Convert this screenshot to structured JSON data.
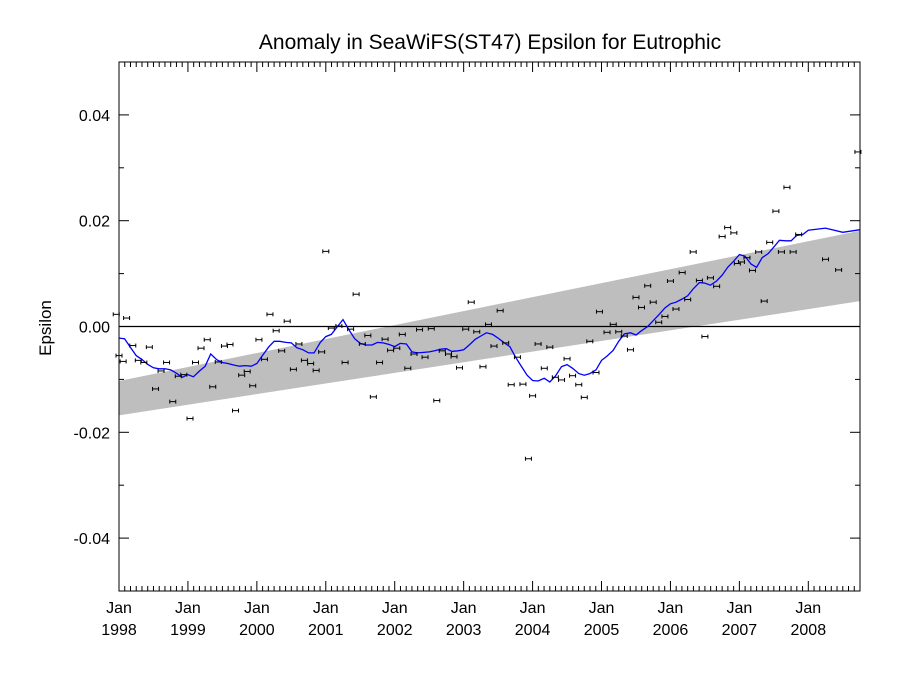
{
  "chart_data": {
    "type": "scatter",
    "title": "Anomaly in SeaWiFS(ST47) Epsilon for Eutrophic",
    "xlabel": "",
    "ylabel": "Epsilon",
    "xlim": [
      1998.0,
      2008.75
    ],
    "ylim": [
      -0.05,
      0.05
    ],
    "y_ticks": [
      {
        "value": 0.04,
        "label": "0.04"
      },
      {
        "value": 0.02,
        "label": "0.02"
      },
      {
        "value": 0.0,
        "label": "0.00"
      },
      {
        "value": -0.02,
        "label": "-0.02"
      },
      {
        "value": -0.04,
        "label": "-0.04"
      }
    ],
    "x_ticks": [
      {
        "value": 1998.0,
        "month": "Jan",
        "year": "1998"
      },
      {
        "value": 1999.0,
        "month": "Jan",
        "year": "1999"
      },
      {
        "value": 2000.0,
        "month": "Jan",
        "year": "2000"
      },
      {
        "value": 2001.0,
        "month": "Jan",
        "year": "2001"
      },
      {
        "value": 2002.0,
        "month": "Jan",
        "year": "2002"
      },
      {
        "value": 2003.0,
        "month": "Jan",
        "year": "2003"
      },
      {
        "value": 2004.0,
        "month": "Jan",
        "year": "2004"
      },
      {
        "value": 2005.0,
        "month": "Jan",
        "year": "2005"
      },
      {
        "value": 2006.0,
        "month": "Jan",
        "year": "2006"
      },
      {
        "value": 2007.0,
        "month": "Jan",
        "year": "2007"
      },
      {
        "value": 2008.0,
        "month": "Jan",
        "year": "2008"
      }
    ],
    "zero_line": 0.0,
    "trend_band": {
      "start": {
        "x": 1998.0,
        "lower": -0.0168,
        "upper": -0.0103
      },
      "end": {
        "x": 2008.75,
        "lower": 0.0048,
        "upper": 0.0181
      },
      "color": "#bebebe"
    },
    "points": {
      "color": "#000000",
      "data": [
        [
          1997.96,
          0.0023
        ],
        [
          1998.0,
          -0.0055
        ],
        [
          1998.06,
          -0.0066
        ],
        [
          1998.11,
          0.0016
        ],
        [
          1998.2,
          -0.0036
        ],
        [
          1998.28,
          -0.0064
        ],
        [
          1998.36,
          -0.0068
        ],
        [
          1998.44,
          -0.0039
        ],
        [
          1998.53,
          -0.0118
        ],
        [
          1998.61,
          -0.0084
        ],
        [
          1998.69,
          -0.0068
        ],
        [
          1998.78,
          -0.0142
        ],
        [
          1998.86,
          -0.0094
        ],
        [
          1998.94,
          -0.0091
        ],
        [
          1999.03,
          -0.0174
        ],
        [
          1999.11,
          -0.0068
        ],
        [
          1999.19,
          -0.0041
        ],
        [
          1999.28,
          -0.0025
        ],
        [
          1999.36,
          -0.0114
        ],
        [
          1999.44,
          -0.0067
        ],
        [
          1999.53,
          -0.0037
        ],
        [
          1999.61,
          -0.0034
        ],
        [
          1999.69,
          -0.0159
        ],
        [
          1999.78,
          -0.0092
        ],
        [
          1999.86,
          -0.0085
        ],
        [
          1999.94,
          -0.0112
        ],
        [
          2000.03,
          -0.0025
        ],
        [
          2000.11,
          -0.0062
        ],
        [
          2000.19,
          0.0023
        ],
        [
          2000.28,
          -0.0008
        ],
        [
          2000.36,
          -0.0046
        ],
        [
          2000.44,
          0.001
        ],
        [
          2000.53,
          -0.0081
        ],
        [
          2000.61,
          -0.0033
        ],
        [
          2000.69,
          -0.0064
        ],
        [
          2000.78,
          -0.007
        ],
        [
          2000.86,
          -0.0083
        ],
        [
          2000.94,
          -0.0048
        ],
        [
          2001.0,
          0.0142
        ],
        [
          2001.08,
          -0.0003
        ],
        [
          2001.19,
          0.0001
        ],
        [
          2001.28,
          -0.0068
        ],
        [
          2001.36,
          -0.0005
        ],
        [
          2001.44,
          0.0061
        ],
        [
          2001.53,
          -0.0033
        ],
        [
          2001.61,
          -0.0017
        ],
        [
          2001.69,
          -0.0133
        ],
        [
          2001.78,
          -0.0068
        ],
        [
          2001.86,
          -0.0024
        ],
        [
          2001.94,
          -0.0045
        ],
        [
          2002.03,
          -0.0041
        ],
        [
          2002.11,
          -0.0015
        ],
        [
          2002.19,
          -0.0079
        ],
        [
          2002.28,
          -0.0052
        ],
        [
          2002.36,
          -0.0006
        ],
        [
          2002.44,
          -0.0058
        ],
        [
          2002.53,
          -0.0004
        ],
        [
          2002.61,
          -0.014
        ],
        [
          2002.69,
          -0.0046
        ],
        [
          2002.78,
          -0.0052
        ],
        [
          2002.86,
          -0.0057
        ],
        [
          2002.94,
          -0.0078
        ],
        [
          2003.03,
          -0.0005
        ],
        [
          2003.11,
          0.0046
        ],
        [
          2003.19,
          -0.001
        ],
        [
          2003.28,
          -0.0076
        ],
        [
          2003.36,
          0.0004
        ],
        [
          2003.44,
          -0.0037
        ],
        [
          2003.53,
          0.003
        ],
        [
          2003.61,
          -0.0031
        ],
        [
          2003.69,
          -0.011
        ],
        [
          2003.78,
          -0.0058
        ],
        [
          2003.86,
          -0.0109
        ],
        [
          2003.94,
          -0.025
        ],
        [
          2004.0,
          -0.0131
        ],
        [
          2004.08,
          -0.0033
        ],
        [
          2004.17,
          -0.0079
        ],
        [
          2004.25,
          -0.0039
        ],
        [
          2004.33,
          -0.0096
        ],
        [
          2004.42,
          -0.0101
        ],
        [
          2004.5,
          -0.0061
        ],
        [
          2004.58,
          -0.0093
        ],
        [
          2004.67,
          -0.011
        ],
        [
          2004.75,
          -0.0134
        ],
        [
          2004.83,
          -0.0028
        ],
        [
          2004.92,
          -0.0087
        ],
        [
          2004.97,
          0.0028
        ],
        [
          2005.08,
          -0.0011
        ],
        [
          2005.17,
          0.0004
        ],
        [
          2005.25,
          -0.001
        ],
        [
          2005.33,
          -0.0018
        ],
        [
          2005.42,
          -0.0044
        ],
        [
          2005.5,
          0.0055
        ],
        [
          2005.58,
          0.0036
        ],
        [
          2005.67,
          0.0077
        ],
        [
          2005.75,
          0.0046
        ],
        [
          2005.83,
          0.0008
        ],
        [
          2005.92,
          0.0019
        ],
        [
          2006.0,
          0.0086
        ],
        [
          2006.08,
          0.0033
        ],
        [
          2006.17,
          0.0102
        ],
        [
          2006.25,
          0.0051
        ],
        [
          2006.33,
          0.0141
        ],
        [
          2006.42,
          0.0087
        ],
        [
          2006.5,
          -0.0019
        ],
        [
          2006.58,
          0.0092
        ],
        [
          2006.67,
          0.0076
        ],
        [
          2006.75,
          0.017
        ],
        [
          2006.83,
          0.0187
        ],
        [
          2006.92,
          0.0177
        ],
        [
          2006.97,
          0.0119
        ],
        [
          2007.03,
          0.0122
        ],
        [
          2007.11,
          0.013
        ],
        [
          2007.19,
          0.0106
        ],
        [
          2007.28,
          0.0141
        ],
        [
          2007.36,
          0.0048
        ],
        [
          2007.44,
          0.0159
        ],
        [
          2007.53,
          0.0218
        ],
        [
          2007.61,
          0.0141
        ],
        [
          2007.69,
          0.0263
        ],
        [
          2007.78,
          0.0141
        ],
        [
          2007.86,
          0.0174
        ],
        [
          2008.25,
          0.0127
        ],
        [
          2008.44,
          0.0107
        ],
        [
          2008.72,
          0.033
        ]
      ]
    },
    "line": {
      "color": "#0000ff",
      "x": [
        1998.0,
        1998.08,
        1998.17,
        1998.25,
        1998.33,
        1998.42,
        1998.5,
        1998.58,
        1998.67,
        1998.75,
        1998.83,
        1998.92,
        1999.0,
        1999.08,
        1999.17,
        1999.25,
        1999.33,
        1999.42,
        1999.5,
        1999.58,
        1999.67,
        1999.75,
        1999.83,
        1999.92,
        2000.0,
        2000.08,
        2000.17,
        2000.25,
        2000.33,
        2000.42,
        2000.5,
        2000.58,
        2000.67,
        2000.75,
        2000.83,
        2000.92,
        2001.0,
        2001.08,
        2001.17,
        2001.25,
        2001.33,
        2001.42,
        2001.5,
        2001.58,
        2001.67,
        2001.75,
        2001.83,
        2001.92,
        2002.0,
        2002.08,
        2002.17,
        2002.25,
        2002.33,
        2002.42,
        2002.5,
        2002.58,
        2002.67,
        2002.75,
        2002.83,
        2002.92,
        2003.0,
        2003.08,
        2003.17,
        2003.25,
        2003.33,
        2003.42,
        2003.5,
        2003.58,
        2003.67,
        2003.75,
        2003.83,
        2003.92,
        2004.0,
        2004.08,
        2004.17,
        2004.25,
        2004.33,
        2004.42,
        2004.5,
        2004.58,
        2004.67,
        2004.75,
        2004.83,
        2004.92,
        2005.0,
        2005.08,
        2005.17,
        2005.25,
        2005.33,
        2005.42,
        2005.5,
        2005.58,
        2005.67,
        2005.75,
        2005.83,
        2005.92,
        2006.0,
        2006.08,
        2006.17,
        2006.25,
        2006.33,
        2006.42,
        2006.5,
        2006.58,
        2006.67,
        2006.75,
        2006.83,
        2006.92,
        2007.0,
        2007.08,
        2007.17,
        2007.25,
        2007.33,
        2007.42,
        2007.5,
        2007.58,
        2007.67,
        2007.75,
        2007.83,
        2007.92,
        2008.0,
        2008.25,
        2008.5,
        2008.75
      ],
      "y": [
        -0.0022,
        -0.0023,
        -0.004,
        -0.0055,
        -0.0062,
        -0.0072,
        -0.0078,
        -0.008,
        -0.008,
        -0.0082,
        -0.0088,
        -0.0096,
        -0.0091,
        -0.0095,
        -0.0084,
        -0.0075,
        -0.0052,
        -0.0063,
        -0.0068,
        -0.007,
        -0.0073,
        -0.0075,
        -0.0074,
        -0.0075,
        -0.007,
        -0.0055,
        -0.0039,
        -0.0028,
        -0.0028,
        -0.003,
        -0.0031,
        -0.004,
        -0.0044,
        -0.005,
        -0.005,
        -0.003,
        -0.0019,
        -0.0015,
        0.0,
        0.0013,
        -0.0005,
        -0.0023,
        -0.0032,
        -0.0035,
        -0.0035,
        -0.003,
        -0.0031,
        -0.0034,
        -0.0038,
        -0.0032,
        -0.0033,
        -0.0048,
        -0.005,
        -0.0049,
        -0.0048,
        -0.0046,
        -0.0043,
        -0.0042,
        -0.0047,
        -0.0046,
        -0.0044,
        -0.0035,
        -0.0024,
        -0.0018,
        -0.0012,
        -0.0015,
        -0.0022,
        -0.003,
        -0.0038,
        -0.0057,
        -0.0074,
        -0.0092,
        -0.0102,
        -0.0103,
        -0.0098,
        -0.0105,
        -0.0094,
        -0.0076,
        -0.0072,
        -0.0079,
        -0.0089,
        -0.0092,
        -0.0089,
        -0.0082,
        -0.0064,
        -0.0056,
        -0.0045,
        -0.0028,
        -0.0014,
        -0.0012,
        -0.0016,
        -0.0008,
        0.0,
        0.0011,
        0.0022,
        0.0035,
        0.0043,
        0.0046,
        0.0052,
        0.0058,
        0.0071,
        0.0083,
        0.0082,
        0.0078,
        0.0086,
        0.0097,
        0.0112,
        0.0124,
        0.0136,
        0.0133,
        0.0118,
        0.0112,
        0.013,
        0.0138,
        0.015,
        0.0163,
        0.0162,
        0.0162,
        0.0172,
        0.0174,
        0.0182,
        0.0186,
        0.0178,
        0.0183
      ]
    }
  }
}
